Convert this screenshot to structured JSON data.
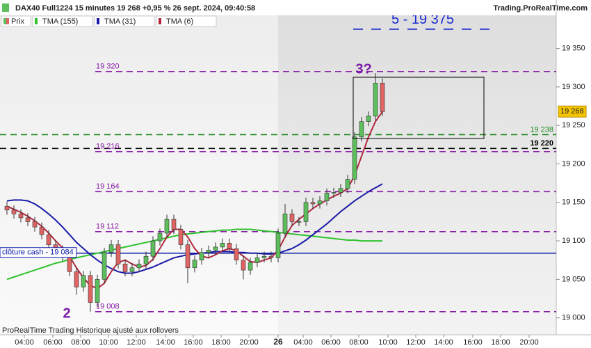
{
  "chart_data": {
    "type": "candlestick",
    "title": "DAX40 Full1224 15 minutes 19 268 +0,95 % 26 sept. 2024, 09:40:58",
    "source": "Trading.ProRealTime.com",
    "footer": "ProRealTime Trading  Historique ajusté aux rollovers",
    "annotations": [
      "3?",
      "2"
    ],
    "xlim": [
      0,
      80
    ],
    "xticks": [
      {
        "value": 3.5,
        "label": "04:00"
      },
      {
        "value": 7.6,
        "label": "06:00"
      },
      {
        "value": 11.6,
        "label": "08:00"
      },
      {
        "value": 15.6,
        "label": "10:00"
      },
      {
        "value": 19.6,
        "label": "12:00"
      },
      {
        "value": 23.8,
        "label": "14:00"
      },
      {
        "value": 27.8,
        "label": "16:00"
      },
      {
        "value": 31.8,
        "label": "18:00"
      },
      {
        "value": 35.8,
        "label": "20:00"
      },
      {
        "value": 40,
        "label": "26"
      },
      {
        "value": 43.6,
        "label": "04:00"
      },
      {
        "value": 47.6,
        "label": "06:00"
      },
      {
        "value": 51.6,
        "label": "08:00"
      },
      {
        "value": 55.8,
        "label": "10:00"
      },
      {
        "value": 59.8,
        "label": "12:00"
      },
      {
        "value": 63.8,
        "label": "14:00"
      },
      {
        "value": 68,
        "label": "16:00"
      },
      {
        "value": 72,
        "label": "18:00"
      },
      {
        "value": 76.1,
        "label": "20:00"
      }
    ],
    "ylim": [
      18978,
      19393
    ],
    "yticks": [
      {
        "value": 19000,
        "label": "19 000"
      },
      {
        "value": 19050,
        "label": "19 050"
      },
      {
        "value": 19100,
        "label": "19 100"
      },
      {
        "value": 19150,
        "label": "19 150"
      },
      {
        "value": 19200,
        "label": "19 200"
      },
      {
        "value": 19250,
        "label": "19 250"
      },
      {
        "value": 19300,
        "label": "19 300"
      },
      {
        "value": 19350,
        "label": "19 350"
      }
    ],
    "x": [
      1,
      2,
      3,
      4,
      5,
      6,
      7,
      8,
      9,
      10,
      11,
      12,
      13,
      14,
      15,
      16,
      17,
      18,
      19,
      20,
      21,
      22,
      23,
      24,
      25,
      26,
      27,
      28,
      29,
      30,
      31,
      32,
      33,
      34,
      35,
      36,
      37,
      38,
      39,
      40,
      41,
      42,
      43,
      44,
      45,
      46,
      47,
      48,
      49,
      50,
      51,
      52,
      53,
      54,
      55
    ],
    "candles": {
      "name": "Prix",
      "up_color": "#5cbf5c",
      "down_color": "#e06464",
      "open": [
        19145,
        19140,
        19135,
        19130,
        19125,
        19118,
        19108,
        19095,
        19088,
        19080,
        19060,
        19040,
        19055,
        19020,
        19050,
        19085,
        19095,
        19070,
        19060,
        19065,
        19070,
        19080,
        19100,
        19110,
        19128,
        19115,
        19095,
        19065,
        19075,
        19085,
        19088,
        19092,
        19097,
        19090,
        19075,
        19062,
        19072,
        19078,
        19080,
        19078,
        19110,
        19135,
        19125,
        19125,
        19150,
        19148,
        19152,
        19162,
        19163,
        19168,
        19180,
        19235,
        19255,
        19262,
        19305
      ],
      "high": [
        19151,
        19146,
        19141,
        19136,
        19131,
        19124,
        19114,
        19101,
        19094,
        19086,
        19066,
        19061,
        19061,
        19056,
        19091,
        19101,
        19101,
        19076,
        19071,
        19076,
        19086,
        19106,
        19116,
        19134,
        19134,
        19121,
        19101,
        19081,
        19091,
        19094,
        19098,
        19103,
        19103,
        19096,
        19081,
        19078,
        19084,
        19086,
        19086,
        19116,
        19148,
        19141,
        19131,
        19156,
        19156,
        19158,
        19168,
        19169,
        19174,
        19186,
        19241,
        19261,
        19268,
        19318,
        19311
      ],
      "low": [
        19134,
        19129,
        19124,
        19119,
        19112,
        19102,
        19089,
        19082,
        19074,
        19054,
        19030,
        19034,
        19008,
        19014,
        19044,
        19079,
        19064,
        19054,
        19054,
        19059,
        19064,
        19074,
        19094,
        19104,
        19109,
        19089,
        19045,
        19059,
        19069,
        19079,
        19082,
        19086,
        19084,
        19069,
        19050,
        19056,
        19066,
        19072,
        19072,
        19072,
        19104,
        19119,
        19119,
        19119,
        19142,
        19142,
        19146,
        19156,
        19157,
        19162,
        19174,
        19229,
        19249,
        19256,
        19262
      ],
      "close": [
        19140,
        19135,
        19130,
        19125,
        19118,
        19108,
        19095,
        19088,
        19080,
        19060,
        19040,
        19055,
        19020,
        19050,
        19085,
        19095,
        19070,
        19060,
        19065,
        19070,
        19080,
        19100,
        19110,
        19128,
        19115,
        19095,
        19065,
        19075,
        19085,
        19088,
        19092,
        19097,
        19090,
        19075,
        19062,
        19072,
        19078,
        19080,
        19078,
        19110,
        19135,
        19125,
        19125,
        19150,
        19148,
        19152,
        19162,
        19163,
        19168,
        19180,
        19235,
        19255,
        19262,
        19305,
        19268
      ]
    },
    "series": [
      {
        "name": "TMA (155)",
        "color": "#2ec22e",
        "values": [
          19050,
          19053,
          19056,
          19059,
          19062,
          19065,
          19068,
          19071,
          19073,
          19076,
          19078,
          19080,
          19082,
          19084,
          19086,
          19088,
          19090,
          19092,
          19094,
          19096,
          19098,
          19100,
          19102,
          19104,
          19106,
          19108,
          19109,
          19110,
          19111,
          19112,
          19113,
          19114,
          19114,
          19115,
          19115,
          19115,
          19114,
          19113,
          19112,
          19111,
          19110,
          19109,
          19108,
          19107,
          19106,
          19105,
          19104,
          19103,
          19102,
          19101,
          19101,
          19100,
          19100,
          19100,
          19100
        ]
      },
      {
        "name": "TMA (31)",
        "color": "#1a1aa8",
        "values": [
          19152,
          19153,
          19153,
          19152,
          19148,
          19142,
          19135,
          19127,
          19118,
          19108,
          19098,
          19090,
          19082,
          19075,
          19069,
          19064,
          19060,
          19058,
          19058,
          19060,
          19063,
          19066,
          19070,
          19074,
          19078,
          19080,
          19082,
          19083,
          19084,
          19085,
          19086,
          19086,
          19086,
          19085,
          19085,
          19084,
          19084,
          19083,
          19083,
          19084,
          19087,
          19090,
          19095,
          19101,
          19108,
          19115,
          19122,
          19130,
          19138,
          19145,
          19152,
          19158,
          19164,
          19169,
          19174
        ]
      },
      {
        "name": "TMA (6)",
        "color": "#b0283c",
        "values": [
          19145,
          19141,
          19137,
          19132,
          19126,
          19119,
          19110,
          19100,
          19091,
          19080,
          19065,
          19052,
          19042,
          19038,
          19045,
          19060,
          19072,
          19075,
          19070,
          19066,
          19068,
          19076,
          19090,
          19105,
          19115,
          19115,
          19105,
          19090,
          19080,
          19078,
          19082,
          19087,
          19090,
          19087,
          19080,
          19073,
          19072,
          19075,
          19078,
          19088,
          19105,
          19120,
          19128,
          19135,
          19142,
          19148,
          19153,
          19158,
          19162,
          19168,
          19185,
          19210,
          19235,
          19255,
          19268
        ]
      }
    ],
    "levels": [
      {
        "value": 19320,
        "label": "19 320",
        "color": "#8a1aa8",
        "style": "dashed",
        "label_position": "left"
      },
      {
        "value": 19216,
        "label": "19 216",
        "color": "#8a1aa8",
        "style": "dashed",
        "label_position": "left"
      },
      {
        "value": 19164,
        "label": "19 164",
        "color": "#8a1aa8",
        "style": "dashed",
        "label_position": "left"
      },
      {
        "value": 19112,
        "label": "19 112",
        "color": "#8a1aa8",
        "style": "dashed",
        "label_position": "left"
      },
      {
        "value": 19008,
        "label": "19 008",
        "color": "#8a1aa8",
        "style": "dashed",
        "label_position": "left"
      },
      {
        "value": 19238,
        "label": "19 238",
        "color": "#1a8a1a",
        "style": "dashed",
        "label_position": "right"
      },
      {
        "value": 19220,
        "label": "19 220",
        "color": "#000000",
        "style": "dashed",
        "label_position": "right"
      },
      {
        "value": 19084,
        "label": "clôture cash -  19 084",
        "color": "#0a1aa8",
        "style": "solid",
        "label_position": "left"
      },
      {
        "value": 19375,
        "label": "5 - 19 375",
        "color": "#1a2ad0",
        "style": "dashed",
        "label_position": "top"
      }
    ],
    "last": {
      "value": 19268,
      "label": "19 268",
      "color": "#f5c400"
    }
  }
}
